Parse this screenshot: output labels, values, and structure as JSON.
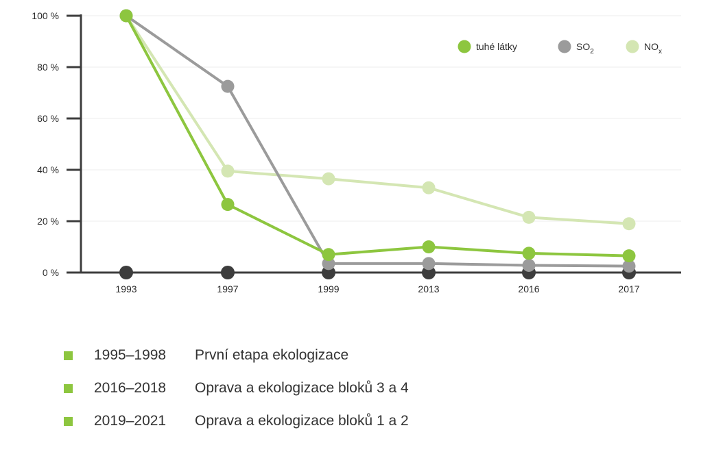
{
  "chart_data": {
    "type": "line",
    "x": [
      "1993",
      "1997",
      "1999",
      "2013",
      "2016",
      "2017"
    ],
    "ytick_labels": [
      "0 %",
      "20 %",
      "40 %",
      "60 %",
      "80 %",
      "100 %"
    ],
    "yticks": [
      0,
      20,
      40,
      60,
      80,
      100
    ],
    "ylim": [
      0,
      100
    ],
    "series": [
      {
        "name": "NO",
        "subscript": "x",
        "color": "#d4e6b3",
        "values": [
          100,
          39.5,
          36.5,
          33,
          21.5,
          19
        ]
      },
      {
        "name": "SO",
        "subscript": "2",
        "color": "#9b9b9b",
        "values": [
          100,
          72.5,
          3.5,
          3.5,
          2.8,
          2.5
        ]
      },
      {
        "name": "tuhé látky",
        "subscript": "",
        "color": "#8dc63f",
        "values": [
          100,
          26.5,
          7,
          10,
          7.5,
          6.5
        ]
      }
    ],
    "legend_order": [
      2,
      1,
      0
    ],
    "legend_position": "top-right",
    "grid": true,
    "baseline_markers_color": "#3d3d3d"
  },
  "notes": {
    "bullet_color": "#8dc63f",
    "items": [
      {
        "period": "1995–1998",
        "text": "První etapa ekologizace"
      },
      {
        "period": "2016–2018",
        "text": "Oprava a ekologizace bloků 3 a 4"
      },
      {
        "period": "2019–2021",
        "text": "Oprava a ekologizace bloků 1 a 2"
      }
    ]
  }
}
